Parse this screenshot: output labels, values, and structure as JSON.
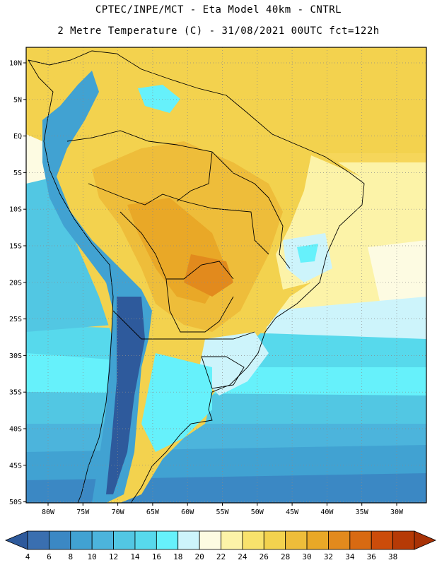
{
  "header": {
    "line1": "CPTEC/INPE/MCT -  Eta Model 40km - CNTRL",
    "line2": "2 Metre Temperature (C) - 31/08/2021 00UTC fct=122h"
  },
  "map": {
    "lat_labels": [
      "10N",
      "5N",
      "EQ",
      "5S",
      "10S",
      "15S",
      "20S",
      "25S",
      "30S",
      "35S",
      "40S",
      "45S",
      "50S"
    ],
    "lon_labels": [
      "80W",
      "75W",
      "70W",
      "65W",
      "60W",
      "55W",
      "50W",
      "45W",
      "40W",
      "35W",
      "30W"
    ]
  },
  "colorbar": {
    "labels": [
      "4",
      "6",
      "8",
      "10",
      "12",
      "14",
      "16",
      "18",
      "20",
      "22",
      "24",
      "26",
      "28",
      "30",
      "32",
      "34",
      "36",
      "38"
    ],
    "colors": [
      "#3a6fb0",
      "#3b88c4",
      "#41a2d2",
      "#4cb4dc",
      "#52c7e3",
      "#57d9ec",
      "#66f1fb",
      "#cdf4fb",
      "#fdfbe2",
      "#fcf3a8",
      "#f8e26c",
      "#f3d24e",
      "#eebd3a",
      "#e9a827",
      "#e28a1d",
      "#d86a12",
      "#cc4c0a",
      "#b63a06"
    ],
    "end_low_color": "#2e5a9c",
    "end_high_color": "#a83206"
  }
}
